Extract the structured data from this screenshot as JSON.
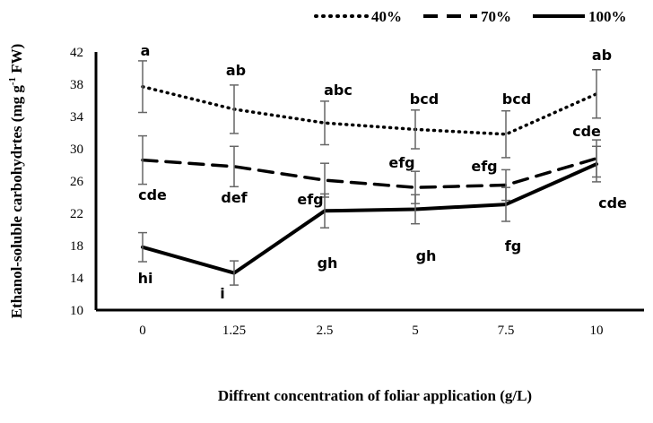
{
  "chart_data": {
    "type": "line",
    "xlabel": "Diffrent concentration of foliar application (g/L)",
    "ylabel": "Ethanol-soluble carbohydrtes (mg g",
    "ylabel_sup": "-1",
    "ylabel_tail": " FW)",
    "categories": [
      "0",
      "1.25",
      "2.5",
      "5",
      "7.5",
      "10"
    ],
    "ylim": [
      10,
      42
    ],
    "yticks": [
      10,
      14,
      18,
      22,
      26,
      30,
      34,
      38,
      42
    ],
    "legend_position": "top-right",
    "grid": false,
    "series": [
      {
        "name": "40%",
        "style": "dotted",
        "values": [
          37.7,
          34.9,
          33.2,
          32.4,
          31.8,
          36.8
        ],
        "errors": [
          3.2,
          3.0,
          2.7,
          2.4,
          2.9,
          3.0
        ],
        "letters": [
          "a",
          "ab",
          "abc",
          "bcd",
          "bcd",
          "ab"
        ]
      },
      {
        "name": "70%",
        "style": "dashed",
        "values": [
          28.6,
          27.8,
          26.1,
          25.2,
          25.5,
          28.8
        ],
        "errors": [
          3.0,
          2.5,
          2.1,
          2.0,
          1.9,
          2.3
        ],
        "letters": [
          "cde",
          "def",
          "efg",
          "efg",
          "efg",
          "cde"
        ]
      },
      {
        "name": "100%",
        "style": "solid",
        "values": [
          17.8,
          14.6,
          22.3,
          22.5,
          23.1,
          28.1
        ],
        "errors": [
          1.8,
          1.5,
          2.1,
          1.8,
          2.1,
          2.2
        ],
        "letters": [
          "hi",
          "i",
          "gh",
          "gh",
          "fg",
          "cde"
        ]
      }
    ]
  }
}
